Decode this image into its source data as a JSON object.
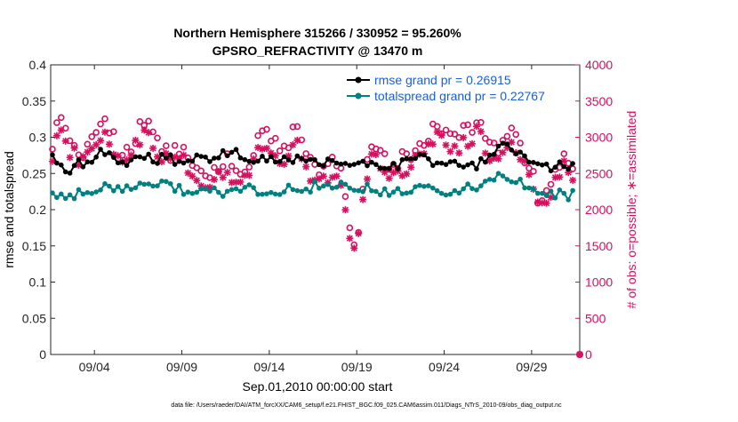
{
  "chart_data": {
    "type": "line",
    "title_line1": "Northern Hemisphere 315266 / 330952 = 95.260%",
    "title_line2": "GPSRO_REFRACTIVITY @ 13470 m",
    "xlabel": "Sep.01,2010 00:00:00 start",
    "ylabel_left": "rmse and totalspread",
    "ylabel_right": "# of obs: o=possible; ∗=assimilated",
    "footer": "data file: /Users/raeder/DAI/ATM_forcXX/CAM6_setup/f.e21.FHIST_BGC.f09_025.CAM6assim.011/Diags_NTrS_2010-09/obs_diag_output.nc",
    "x_range_days": [
      0.5,
      30.75
    ],
    "x_ticks": [
      {
        "day": 3,
        "label": "09/04"
      },
      {
        "day": 8,
        "label": "09/09"
      },
      {
        "day": 13,
        "label": "09/14"
      },
      {
        "day": 18,
        "label": "09/19"
      },
      {
        "day": 23,
        "label": "09/24"
      },
      {
        "day": 28,
        "label": "09/29"
      }
    ],
    "ylim_left": [
      0,
      0.4
    ],
    "yticks_left": [
      "0",
      "0.05",
      "0.1",
      "0.15",
      "0.2",
      "0.25",
      "0.3",
      "0.35",
      "0.4"
    ],
    "ylim_right": [
      0,
      4000
    ],
    "yticks_right": [
      "0",
      "500",
      "1000",
      "1500",
      "2000",
      "2500",
      "3000",
      "3500",
      "4000"
    ],
    "series": [
      {
        "name": "rmse grand pr = 0.26915",
        "color": "#000000",
        "anchors_day": [
          0.6,
          1,
          1.3,
          1.6,
          2,
          2.3,
          2.6,
          3,
          3.2,
          3.5,
          4,
          4.5,
          5,
          5.5,
          6,
          6.5,
          7,
          7.5,
          8,
          8.5,
          9,
          9.5,
          10,
          10.5,
          11,
          11.5,
          12,
          12.5,
          13,
          13.5,
          14,
          14.5,
          15,
          15.5,
          16,
          16.5,
          17,
          17.5,
          18,
          18.5,
          19,
          19.5,
          20,
          20.5,
          21,
          21.5,
          22,
          22.5,
          23,
          23.5,
          24,
          24.5,
          25,
          25.3,
          25.6,
          26,
          26.5,
          27,
          27.5,
          28,
          28.5,
          29,
          29.5,
          30,
          30.5
        ],
        "anchors_value": [
          0.27,
          0.262,
          0.258,
          0.255,
          0.268,
          0.265,
          0.26,
          0.27,
          0.275,
          0.28,
          0.272,
          0.268,
          0.265,
          0.27,
          0.275,
          0.268,
          0.272,
          0.27,
          0.262,
          0.268,
          0.272,
          0.27,
          0.275,
          0.278,
          0.28,
          0.272,
          0.268,
          0.272,
          0.27,
          0.265,
          0.268,
          0.27,
          0.268,
          0.265,
          0.262,
          0.268,
          0.265,
          0.26,
          0.262,
          0.265,
          0.26,
          0.255,
          0.258,
          0.262,
          0.27,
          0.275,
          0.268,
          0.262,
          0.265,
          0.262,
          0.26,
          0.258,
          0.262,
          0.27,
          0.278,
          0.285,
          0.29,
          0.28,
          0.272,
          0.265,
          0.26,
          0.258,
          0.262,
          0.256,
          0.26
        ],
        "amplitude": 0.006
      },
      {
        "name": "totalspread grand pr = 0.22767",
        "color": "#008080",
        "anchors_day": [
          0.6,
          1,
          1.5,
          2,
          2.5,
          3,
          3.5,
          4,
          4.5,
          5,
          5.5,
          6,
          6.5,
          7,
          7.5,
          8,
          8.5,
          9,
          9.5,
          10,
          10.5,
          11,
          11.5,
          12,
          12.5,
          13,
          13.5,
          14,
          14.5,
          15,
          15.5,
          16,
          16.5,
          17,
          17.5,
          18,
          18.5,
          19,
          19.5,
          20,
          20.5,
          21,
          21.5,
          22,
          22.5,
          23,
          23.5,
          24,
          24.5,
          25,
          25.5,
          26,
          26.5,
          27,
          27.5,
          28,
          28.5,
          29,
          29.5,
          30,
          30.5
        ],
        "anchors_value": [
          0.222,
          0.215,
          0.22,
          0.222,
          0.225,
          0.228,
          0.232,
          0.23,
          0.228,
          0.232,
          0.235,
          0.232,
          0.23,
          0.234,
          0.23,
          0.228,
          0.226,
          0.23,
          0.228,
          0.225,
          0.222,
          0.224,
          0.226,
          0.228,
          0.225,
          0.224,
          0.226,
          0.228,
          0.225,
          0.226,
          0.232,
          0.236,
          0.234,
          0.232,
          0.228,
          0.226,
          0.23,
          0.23,
          0.226,
          0.224,
          0.222,
          0.226,
          0.23,
          0.234,
          0.226,
          0.224,
          0.226,
          0.228,
          0.232,
          0.235,
          0.238,
          0.248,
          0.25,
          0.242,
          0.238,
          0.23,
          0.226,
          0.224,
          0.222,
          0.22,
          0.222
        ],
        "amplitude": 0.007
      }
    ],
    "obs_series": [
      {
        "name": "possible",
        "marker": "o",
        "color": "#d6105e",
        "anchors_day": [
          0.6,
          1,
          1.5,
          2,
          2.5,
          3,
          3.5,
          4,
          4.5,
          5,
          5.5,
          6,
          6.5,
          7,
          7.5,
          8,
          8.5,
          9,
          9.5,
          10,
          10.5,
          11,
          11.5,
          12,
          12.5,
          13,
          13.5,
          14,
          14.5,
          15,
          15.5,
          16,
          16.5,
          17,
          17.3,
          17.6,
          18,
          18.5,
          19,
          19.5,
          20,
          20.5,
          21,
          21.5,
          22,
          22.5,
          23,
          23.5,
          24,
          24.5,
          25,
          25.5,
          26,
          26.5,
          27,
          27.5,
          28,
          28.3,
          28.6,
          29,
          29.5,
          30,
          30.5
        ],
        "anchors_count": [
          2900,
          3250,
          3000,
          2800,
          2750,
          3100,
          3250,
          3050,
          2700,
          2800,
          3100,
          3300,
          2950,
          2800,
          2750,
          2900,
          2700,
          2550,
          2500,
          2600,
          2700,
          2550,
          2500,
          2700,
          3100,
          3050,
          2900,
          2800,
          3150,
          2750,
          2600,
          2550,
          2650,
          2600,
          2300,
          1800,
          1500,
          2600,
          2900,
          2750,
          2600,
          2700,
          2750,
          2850,
          3000,
          3200,
          3100,
          3000,
          3050,
          3100,
          3250,
          2900,
          2850,
          3050,
          3100,
          2750,
          2650,
          2200,
          2100,
          2200,
          2650,
          2750,
          2600
        ],
        "amplitude": 110
      },
      {
        "name": "assimilated",
        "marker": "*",
        "color": "#d6105e",
        "anchors_day": [
          0.6,
          1,
          1.5,
          2,
          2.5,
          3,
          3.5,
          4,
          4.5,
          5,
          5.5,
          6,
          6.5,
          7,
          7.5,
          8,
          8.5,
          9,
          9.5,
          10,
          10.5,
          11,
          11.5,
          12,
          12.5,
          13,
          13.5,
          14,
          14.5,
          15,
          15.5,
          16,
          16.5,
          17,
          17.3,
          17.6,
          18,
          18.5,
          19,
          19.5,
          20,
          20.5,
          21,
          21.5,
          22,
          22.5,
          23,
          23.5,
          24,
          24.5,
          25,
          25.5,
          26,
          26.5,
          27,
          27.5,
          28,
          28.3,
          28.6,
          29,
          29.5,
          30,
          30.5
        ],
        "anchors_count": [
          2750,
          3100,
          2850,
          2700,
          2650,
          2950,
          3100,
          2900,
          2600,
          2700,
          2950,
          3150,
          2800,
          2700,
          2650,
          2750,
          2550,
          2400,
          2350,
          2450,
          2550,
          2400,
          2350,
          2550,
          2950,
          2900,
          2750,
          2650,
          3000,
          2600,
          2450,
          2400,
          2500,
          2450,
          2150,
          1700,
          1400,
          2450,
          2750,
          2600,
          2450,
          2550,
          2600,
          2700,
          2850,
          3050,
          2950,
          2850,
          2900,
          2950,
          3100,
          2750,
          2700,
          2900,
          2950,
          2600,
          2500,
          2100,
          2000,
          2050,
          2500,
          2600,
          2450
        ],
        "amplitude": 110
      }
    ],
    "samples_per_day": 4,
    "extra_marker": {
      "day": 30.75,
      "count": 0,
      "label": "0"
    }
  }
}
